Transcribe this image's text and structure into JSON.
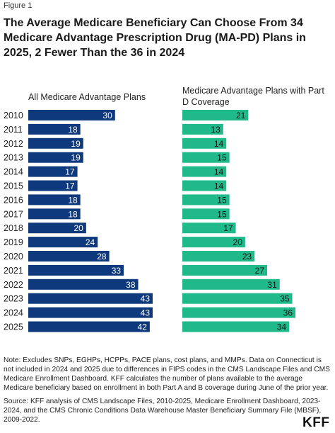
{
  "figure_label": "Figure 1",
  "title": "The Average Medicare Beneficiary Can Choose From 34 Medicare Advantage Prescription Drug (MA-PD) Plans in 2025, 2 Fewer Than the 36 in 2024",
  "note": "Note: Excludes SNPs, EGHPs, HCPPs, PACE plans, cost plans, and MMPs. Data on Connecticut is not included in 2024 and 2025 due to differences in FIPS codes in the CMS Landscape Files and CMS Medicare Enrollment Dashboard. KFF calculates the number of plans available to the average Medicare beneficiary based on enrollment in both Part A and B coverage during June of the prior year.",
  "source": "Source: KFF analysis of CMS Landscape Files, 2010-2025, Medicare Enrollment Dashboard, 2023-2024, and the CMS Chronic Conditions Data Warehouse Master Beneficiary Summary File (MBSF), 2009-2022.",
  "logo_text": "KFF",
  "colors": {
    "left_series": "#0e3a7d",
    "right_series": "#1fb98a",
    "value_text_left": "#ffffff",
    "value_text_right": "#111111"
  },
  "chart_data": [
    {
      "type": "bar",
      "orientation": "horizontal",
      "title": "All Medicare Advantage Plans",
      "categories": [
        "2010",
        "2011",
        "2012",
        "2013",
        "2014",
        "2015",
        "2016",
        "2017",
        "2018",
        "2019",
        "2020",
        "2021",
        "2022",
        "2023",
        "2024",
        "2025"
      ],
      "values": [
        30,
        18,
        19,
        19,
        17,
        17,
        18,
        18,
        20,
        24,
        28,
        33,
        38,
        43,
        43,
        42
      ],
      "data_labels": true
    },
    {
      "type": "bar",
      "orientation": "horizontal",
      "title": "Medicare Advantage Plans with Part D Coverage",
      "categories": [
        "2010",
        "2011",
        "2012",
        "2013",
        "2014",
        "2015",
        "2016",
        "2017",
        "2018",
        "2019",
        "2020",
        "2021",
        "2022",
        "2023",
        "2024",
        "2025"
      ],
      "values": [
        21,
        13,
        14,
        15,
        14,
        14,
        15,
        15,
        17,
        20,
        23,
        27,
        31,
        35,
        36,
        34
      ],
      "data_labels": true
    }
  ]
}
